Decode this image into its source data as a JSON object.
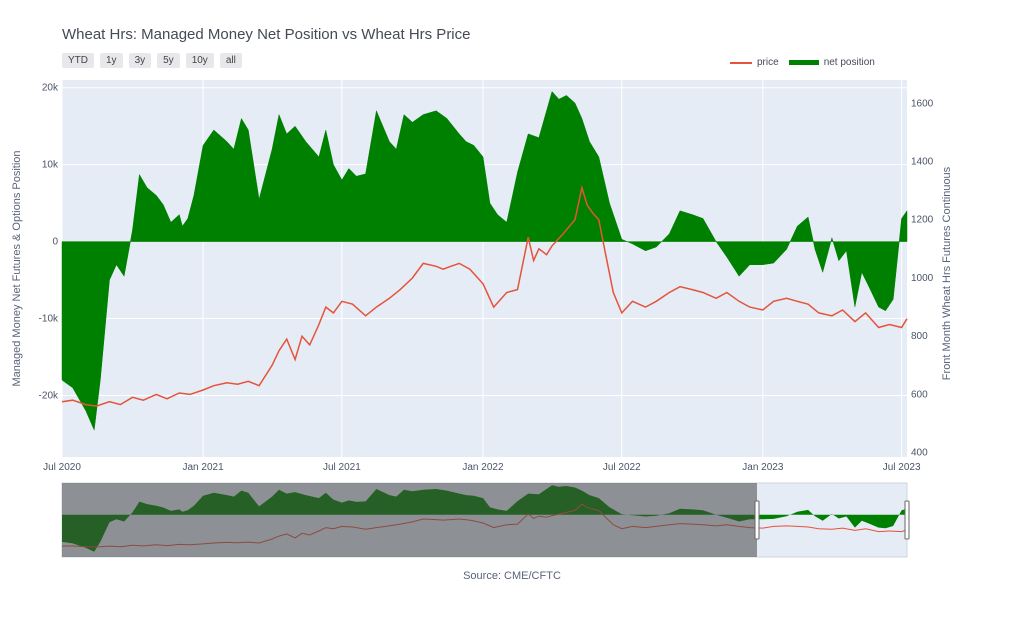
{
  "title": "Wheat Hrs: Managed Money Net Position vs Wheat Hrs Price",
  "range_buttons": [
    "YTD",
    "1y",
    "3y",
    "5y",
    "10y",
    "all"
  ],
  "legend": {
    "price": "price",
    "net_position": "net position"
  },
  "source": "Source: CME/CFTC",
  "colors": {
    "price": "#e5533a",
    "net_position": "#008000",
    "plot_bg": "#e5ecf6",
    "grid": "#ffffff"
  },
  "chart_data": {
    "type": "area",
    "x_tick_labels": [
      "Jul 2020",
      "Jan 2021",
      "Jul 2021",
      "Jan 2022",
      "Jul 2022",
      "Jan 2023",
      "Jul 2023"
    ],
    "x_tick_dates": [
      "2020-07-01",
      "2021-01-01",
      "2021-07-01",
      "2022-01-01",
      "2022-07-01",
      "2023-01-01",
      "2023-07-01"
    ],
    "xlim": [
      "2020-07-01",
      "2023-07-08"
    ],
    "y_left": {
      "label": "Managed Money Net Futures & Options Position",
      "ticks": [
        20000,
        10000,
        0,
        -10000,
        -20000
      ],
      "tick_labels": [
        "20k",
        "10k",
        "0",
        "-10k",
        "-20k"
      ],
      "lim": [
        -28000,
        21000
      ]
    },
    "y_right": {
      "label": "Front Month Wheat Hrs Futures Continuous",
      "ticks": [
        1600,
        1400,
        1200,
        1000,
        800,
        600,
        400
      ],
      "tick_labels": [
        "1600",
        "1400",
        "1200",
        "1000",
        "800",
        "600",
        "400"
      ],
      "lim": [
        385,
        1680
      ]
    },
    "series": [
      {
        "name": "net position",
        "axis": "left",
        "x": [
          "2020-07-01",
          "2020-07-15",
          "2020-08-01",
          "2020-08-12",
          "2020-08-20",
          "2020-09-01",
          "2020-09-10",
          "2020-09-20",
          "2020-10-01",
          "2020-10-10",
          "2020-10-20",
          "2020-11-01",
          "2020-11-10",
          "2020-11-20",
          "2020-12-01",
          "2020-12-05",
          "2020-12-12",
          "2020-12-20",
          "2021-01-01",
          "2021-01-15",
          "2021-02-01",
          "2021-02-10",
          "2021-02-20",
          "2021-03-01",
          "2021-03-15",
          "2021-04-01",
          "2021-04-10",
          "2021-04-20",
          "2021-05-01",
          "2021-05-15",
          "2021-06-01",
          "2021-06-10",
          "2021-06-20",
          "2021-07-01",
          "2021-07-10",
          "2021-07-20",
          "2021-08-01",
          "2021-08-15",
          "2021-09-01",
          "2021-09-10",
          "2021-09-20",
          "2021-10-01",
          "2021-10-15",
          "2021-11-01",
          "2021-11-15",
          "2021-12-01",
          "2021-12-10",
          "2021-12-20",
          "2022-01-01",
          "2022-01-10",
          "2022-01-20",
          "2022-02-01",
          "2022-02-15",
          "2022-03-01",
          "2022-03-15",
          "2022-04-01",
          "2022-04-10",
          "2022-04-20",
          "2022-05-01",
          "2022-05-10",
          "2022-05-20",
          "2022-06-01",
          "2022-06-15",
          "2022-07-01",
          "2022-07-15",
          "2022-08-01",
          "2022-08-15",
          "2022-09-01",
          "2022-09-15",
          "2022-10-01",
          "2022-10-15",
          "2022-11-01",
          "2022-11-15",
          "2022-12-01",
          "2022-12-15",
          "2023-01-01",
          "2023-01-15",
          "2023-02-01",
          "2023-02-15",
          "2023-03-01",
          "2023-03-10",
          "2023-03-20",
          "2023-04-01",
          "2023-04-10",
          "2023-04-20",
          "2023-05-01",
          "2023-05-10",
          "2023-05-20",
          "2023-06-01",
          "2023-06-10",
          "2023-06-20",
          "2023-07-01",
          "2023-07-08"
        ],
        "values": [
          -18000,
          -19000,
          -22000,
          -24500,
          -18000,
          -5000,
          -3000,
          -4500,
          1500,
          8700,
          7000,
          6000,
          4800,
          2500,
          3500,
          2000,
          3000,
          6000,
          12500,
          14500,
          13000,
          12000,
          16000,
          14500,
          5500,
          12000,
          16500,
          14000,
          15000,
          13000,
          11000,
          14500,
          10000,
          8000,
          9500,
          8500,
          8800,
          17000,
          13000,
          12000,
          16500,
          15500,
          16500,
          17000,
          16000,
          14000,
          13000,
          12500,
          11000,
          5000,
          3500,
          2500,
          9000,
          14000,
          13500,
          19500,
          18500,
          19000,
          18000,
          16000,
          13000,
          11000,
          5000,
          300,
          -300,
          -1200,
          -700,
          1000,
          4000,
          3500,
          3000,
          0,
          -2000,
          -4500,
          -3000,
          -3000,
          -2800,
          -1000,
          2000,
          3200,
          -1000,
          -4000,
          500,
          -2500,
          -1200,
          -8500,
          -4000,
          -6000,
          -8500,
          -9000,
          -7500,
          3000,
          4000
        ]
      },
      {
        "name": "price",
        "axis": "right",
        "x": [
          "2020-07-01",
          "2020-07-15",
          "2020-08-01",
          "2020-08-15",
          "2020-09-01",
          "2020-09-15",
          "2020-10-01",
          "2020-10-15",
          "2020-11-01",
          "2020-11-15",
          "2020-12-01",
          "2020-12-15",
          "2021-01-01",
          "2021-01-15",
          "2021-02-01",
          "2021-02-15",
          "2021-03-01",
          "2021-03-15",
          "2021-04-01",
          "2021-04-10",
          "2021-04-20",
          "2021-05-01",
          "2021-05-10",
          "2021-05-20",
          "2021-06-01",
          "2021-06-10",
          "2021-06-20",
          "2021-07-01",
          "2021-07-15",
          "2021-08-01",
          "2021-08-15",
          "2021-09-01",
          "2021-09-15",
          "2021-10-01",
          "2021-10-15",
          "2021-11-01",
          "2021-11-10",
          "2021-11-20",
          "2021-12-01",
          "2021-12-15",
          "2022-01-01",
          "2022-01-15",
          "2022-02-01",
          "2022-02-15",
          "2022-03-01",
          "2022-03-08",
          "2022-03-15",
          "2022-03-25",
          "2022-04-01",
          "2022-04-15",
          "2022-05-01",
          "2022-05-10",
          "2022-05-17",
          "2022-05-25",
          "2022-06-01",
          "2022-06-10",
          "2022-06-20",
          "2022-07-01",
          "2022-07-15",
          "2022-08-01",
          "2022-08-15",
          "2022-09-01",
          "2022-09-15",
          "2022-10-01",
          "2022-10-15",
          "2022-11-01",
          "2022-11-15",
          "2022-12-01",
          "2022-12-15",
          "2023-01-01",
          "2023-01-15",
          "2023-02-01",
          "2023-02-15",
          "2023-03-01",
          "2023-03-15",
          "2023-04-01",
          "2023-04-15",
          "2023-05-01",
          "2023-05-15",
          "2023-06-01",
          "2023-06-15",
          "2023-07-01",
          "2023-07-08"
        ],
        "values": [
          575,
          580,
          565,
          560,
          575,
          565,
          590,
          580,
          600,
          585,
          605,
          600,
          615,
          630,
          640,
          635,
          645,
          630,
          700,
          750,
          790,
          720,
          800,
          770,
          840,
          900,
          880,
          920,
          910,
          870,
          900,
          930,
          960,
          1000,
          1050,
          1040,
          1030,
          1040,
          1050,
          1030,
          980,
          900,
          950,
          960,
          1140,
          1060,
          1100,
          1080,
          1110,
          1150,
          1200,
          1310,
          1250,
          1220,
          1200,
          1080,
          950,
          880,
          920,
          900,
          920,
          950,
          970,
          960,
          950,
          930,
          950,
          920,
          900,
          890,
          920,
          930,
          920,
          910,
          880,
          870,
          890,
          850,
          880,
          830,
          840,
          830,
          860
        ]
      }
    ]
  }
}
